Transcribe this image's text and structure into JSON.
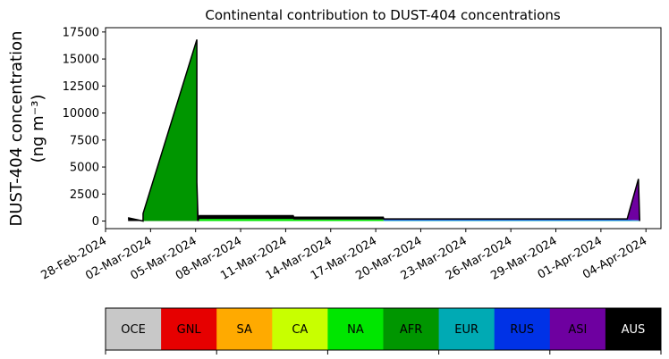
{
  "chart_data": {
    "type": "area",
    "title": "Continental contribution to DUST-404 concentrations",
    "ylabel_line1": "DUST-404 concentration",
    "ylabel_line2": "(ng m⁻³)",
    "xlabel": "",
    "y_ticks": [
      0,
      2500,
      5000,
      7500,
      10000,
      12500,
      15000,
      17500
    ],
    "y_tick_labels": [
      "0",
      "2500",
      "5000",
      "7500",
      "10000",
      "12500",
      "15000",
      "17500"
    ],
    "ylim": [
      -700,
      17900
    ],
    "xlim_days": [
      "2024-02-28T00:00",
      "2024-04-05T00:00"
    ],
    "x_ticks": [
      "2024-02-28",
      "2024-03-02",
      "2024-03-05",
      "2024-03-08",
      "2024-03-11",
      "2024-03-14",
      "2024-03-17",
      "2024-03-20",
      "2024-03-23",
      "2024-03-26",
      "2024-03-29",
      "2024-04-01",
      "2024-04-04"
    ],
    "x_tick_labels": [
      "28-Feb-2024",
      "02-Mar-2024",
      "05-Mar-2024",
      "08-Mar-2024",
      "11-Mar-2024",
      "14-Mar-2024",
      "17-Mar-2024",
      "20-Mar-2024",
      "23-Mar-2024",
      "26-Mar-2024",
      "29-Mar-2024",
      "01-Apr-2024",
      "04-Apr-2024"
    ],
    "grid": false,
    "legend_placement": "bottom-colorbar",
    "categories": [
      "OCE",
      "GNL",
      "SA",
      "CA",
      "NA",
      "AFR",
      "EUR",
      "RUS",
      "ASI",
      "AUS"
    ],
    "colors": [
      "#c8c8c8",
      "#e60000",
      "#ffaa00",
      "#c8ff00",
      "#00e600",
      "#009600",
      "#00aab4",
      "#0032e6",
      "#6e00a0",
      "#000000"
    ],
    "legend_text_colors": [
      "#000000",
      "#000000",
      "#000000",
      "#000000",
      "#000000",
      "#000000",
      "#000000",
      "#000000",
      "#000000",
      "#ffffff"
    ],
    "x": [
      "2024-02-29T12:00",
      "2024-02-29T12:01",
      "2024-03-01T12:00",
      "2024-03-01T12:01",
      "2024-03-05T02:00",
      "2024-03-05T02:01",
      "2024-03-05T04:00",
      "2024-03-05T06:00",
      "2024-03-11T12:00",
      "2024-03-11T13:00",
      "2024-03-17T12:00",
      "2024-03-17T13:00",
      "2024-04-02T18:00",
      "2024-04-03T12:00",
      "2024-04-03T14:00"
    ],
    "series": [
      {
        "name": "NA",
        "values": [
          0,
          0,
          0,
          0,
          0,
          0,
          0,
          200,
          200,
          150,
          150,
          0,
          0,
          0,
          0
        ]
      },
      {
        "name": "AFR",
        "values": [
          0,
          0,
          0,
          700,
          16800,
          0,
          0,
          0,
          0,
          0,
          0,
          0,
          0,
          0,
          0
        ]
      },
      {
        "name": "EUR",
        "values": [
          0,
          0,
          0,
          0,
          0,
          0,
          0,
          0,
          0,
          0,
          0,
          80,
          80,
          50,
          0
        ]
      },
      {
        "name": "RUS",
        "values": [
          0,
          0,
          0,
          0,
          0,
          0,
          0,
          0,
          0,
          0,
          0,
          60,
          60,
          50,
          0
        ]
      },
      {
        "name": "ASI",
        "values": [
          0,
          0,
          0,
          0,
          0,
          0,
          0,
          0,
          0,
          0,
          0,
          60,
          60,
          3800,
          0
        ]
      },
      {
        "name": "AUS",
        "values": [
          300,
          300,
          0,
          0,
          0,
          3600,
          0,
          300,
          300,
          200,
          200,
          0,
          0,
          0,
          0
        ]
      }
    ]
  }
}
